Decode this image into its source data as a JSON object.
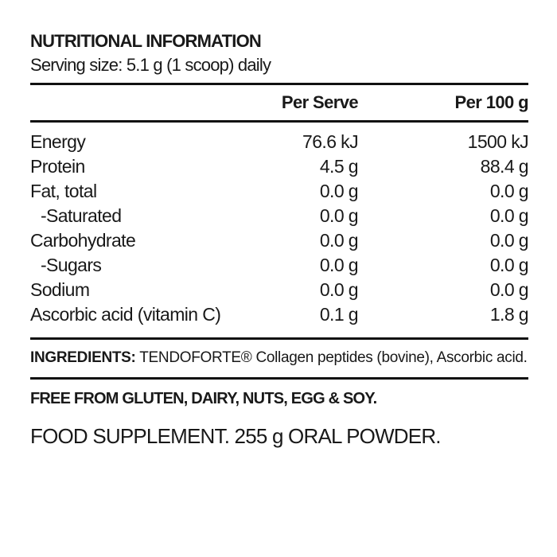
{
  "label": {
    "title": "NUTRITIONAL INFORMATION",
    "serving_size": "Serving size: 5.1 g (1 scoop) daily"
  },
  "table": {
    "columns": {
      "per_serve": "Per Serve",
      "per_100g": "Per 100 g"
    },
    "rows": [
      {
        "label": "Energy",
        "per_serve": "76.6 kJ",
        "per_100g": "1500 kJ"
      },
      {
        "label": "Protein",
        "per_serve": "4.5 g",
        "per_100g": "88.4 g"
      },
      {
        "label": "Fat, total",
        "per_serve": "0.0 g",
        "per_100g": "0.0 g"
      },
      {
        "label": "-Saturated",
        "per_serve": "0.0 g",
        "per_100g": "0.0 g"
      },
      {
        "label": "Carbohydrate",
        "per_serve": "0.0 g",
        "per_100g": "0.0 g"
      },
      {
        "label": "-Sugars",
        "per_serve": "0.0 g",
        "per_100g": "0.0 g"
      },
      {
        "label": "Sodium",
        "per_serve": "0.0 g",
        "per_100g": "0.0 g"
      },
      {
        "label": "Ascorbic acid (vitamin C)",
        "per_serve": "0.1 g",
        "per_100g": "1.8 g"
      }
    ]
  },
  "ingredients": {
    "heading": "INGREDIENTS:",
    "text": "TENDOFORTE® Collagen peptides (bovine), Ascorbic acid."
  },
  "allergen_statement": "FREE FROM GLUTEN, DAIRY, NUTS, EGG & SOY.",
  "supplement_statement": "FOOD SUPPLEMENT. 255 g ORAL POWDER.",
  "colors": {
    "background": "#ffffff",
    "text": "#191919",
    "rule": "#111111"
  }
}
